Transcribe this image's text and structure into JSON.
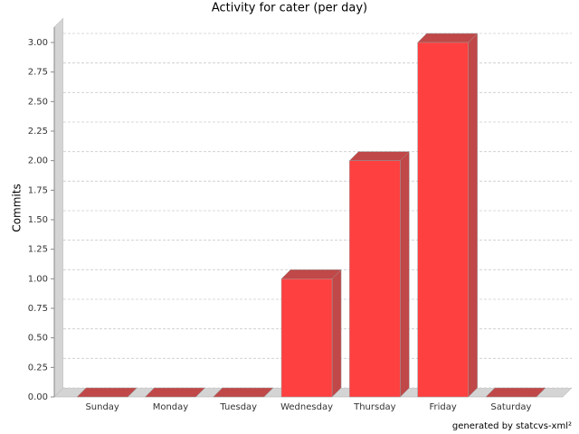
{
  "chart_data": {
    "type": "bar3d",
    "title": "Activity for cater (per day)",
    "y_label": "Commits",
    "footer": "generated by statcvs-xml²",
    "categories": [
      "Sunday",
      "Monday",
      "Tuesday",
      "Wednesday",
      "Thursday",
      "Friday",
      "Saturday"
    ],
    "values": [
      0,
      0,
      0,
      1,
      2,
      3,
      0
    ],
    "color": "#ff4040",
    "ylim": [
      0,
      3
    ],
    "yticks": [
      {
        "value": 0,
        "label": "0.00"
      },
      {
        "value": 0.25,
        "label": "0.25"
      },
      {
        "value": 0.5,
        "label": "0.50"
      },
      {
        "value": 0.75,
        "label": "0.75"
      },
      {
        "value": 1,
        "label": "1.00"
      },
      {
        "value": 1.25,
        "label": "1.25"
      },
      {
        "value": 1.5,
        "label": "1.50"
      },
      {
        "value": 1.75,
        "label": "1.75"
      },
      {
        "value": 2,
        "label": "2.00"
      },
      {
        "value": 2.25,
        "label": "2.25"
      },
      {
        "value": 2.5,
        "label": "2.50"
      },
      {
        "value": 2.75,
        "label": "2.75"
      },
      {
        "value": 3,
        "label": "3.00"
      }
    ],
    "grid": true
  }
}
